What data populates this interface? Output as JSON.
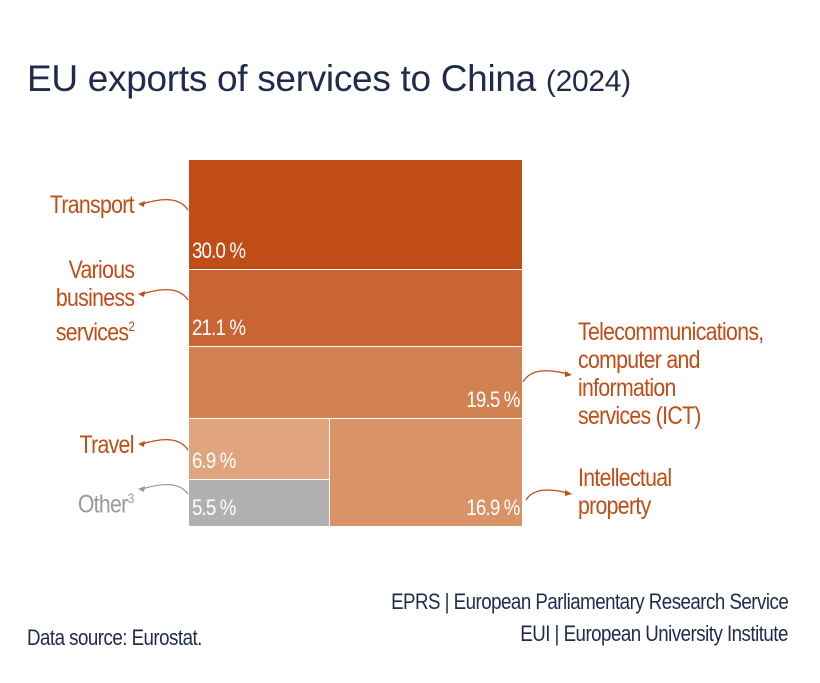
{
  "title": "EU exports of services to China",
  "title_year": "(2024)",
  "chart_data": {
    "type": "treemap",
    "title": "EU exports of services to China (2024)",
    "unit": "%",
    "items": [
      {
        "name": "Transport",
        "value": 30.0,
        "label": "30.0 %",
        "color": "#c04c17"
      },
      {
        "name": "Various business services",
        "footnote": "2",
        "value": 21.1,
        "label": "21.1 %",
        "color": "#c96533"
      },
      {
        "name": "Telecommunications, computer and information services (ICT)",
        "value": 19.5,
        "label": "19.5 %",
        "color": "#d28151"
      },
      {
        "name": "Travel",
        "value": 6.9,
        "label": "6.9 %",
        "color": "#e0a47e"
      },
      {
        "name": "Other",
        "footnote": "3",
        "value": 5.5,
        "label": "5.5 %",
        "color": "#b0b0b0"
      },
      {
        "name": "Intellectual property",
        "value": 16.9,
        "label": "16.9 %",
        "color": "#da9367"
      }
    ]
  },
  "labels": {
    "transport": "Transport",
    "various_l1": "Various",
    "various_l2": "business",
    "various_l3": "services",
    "various_sup": "2",
    "ict_l1": "Telecommunications,",
    "ict_l2": "computer and",
    "ict_l3": "information",
    "ict_l4": "services (ICT)",
    "travel": "Travel",
    "other": "Other",
    "other_sup": "3",
    "ip_l1": "Intellectual",
    "ip_l2": "property"
  },
  "source": "Data source: Eurostat.",
  "credit_1": "EPRS | European Parliamentary Research Service",
  "credit_2": "EUI | European University Institute",
  "colors": {
    "label": "#c04c17",
    "other_label": "#999999",
    "text": "#1f2a4d"
  }
}
